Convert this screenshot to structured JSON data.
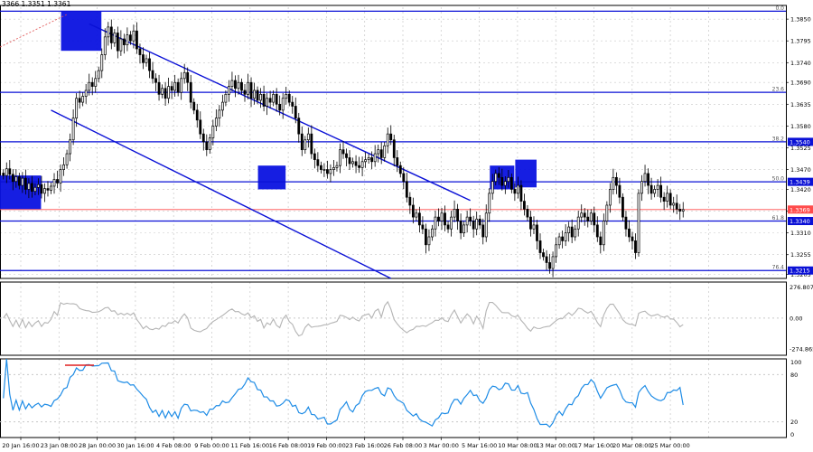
{
  "header": {
    "ohlc_text": "3366 1.3351 1.3361"
  },
  "colors": {
    "grid": "#c8c8c8",
    "candle": "#000000",
    "level_line": "#0a10d6",
    "box_fill": "#0a12e0",
    "price_line": "#ff4b4b",
    "cci_line": "#b4b4b4",
    "rsi_line": "#1e8ce6",
    "fib_diag": "#e05050"
  },
  "chart_data": [
    {
      "type": "candlestick",
      "title": "",
      "time_labels": [
        "20 Jan 16:00",
        "23 Jan 08:00",
        "28 Jan 00:00",
        "30 Jan 16:00",
        "4 Feb 08:00",
        "9 Feb 00:00",
        "11 Feb 16:00",
        "16 Feb 08:00",
        "19 Feb 00:00",
        "23 Feb 16:00",
        "26 Feb 08:00",
        "3 Mar 00:00",
        "5 Mar 16:00",
        "10 Mar 08:00",
        "13 Mar 00:00",
        "17 Mar 16:00",
        "20 Mar 08:00",
        "25 Mar 00:00"
      ],
      "price_ticks": [
        "1.3850",
        "1.3795",
        "1.3740",
        "1.3690",
        "1.3635",
        "1.3580",
        "1.3525",
        "1.3470",
        "1.3420",
        "1.3365",
        "1.3310",
        "1.3255",
        "1.3205"
      ],
      "ylim": [
        1.3195,
        1.388
      ],
      "fib_levels": [
        {
          "label": "0.0",
          "price": 1.387,
          "badge": ""
        },
        {
          "label": "23.6",
          "price": 1.3665,
          "badge": ""
        },
        {
          "label": "38.2",
          "price": 1.354,
          "badge": "1.3540"
        },
        {
          "label": "50.0",
          "price": 1.3439,
          "badge": "1.3439"
        },
        {
          "label": "61.8",
          "price": 1.334,
          "badge": "1.3340"
        },
        {
          "label": "76.4",
          "price": 1.3215,
          "badge": "1.3215"
        }
      ],
      "current_price": {
        "price": 1.3369,
        "badge": "1.3369"
      },
      "candles_close": [
        1.3455,
        1.3472,
        1.3458,
        1.344,
        1.3452,
        1.343,
        1.3448,
        1.342,
        1.3435,
        1.3415,
        1.3425,
        1.3432,
        1.341,
        1.3422,
        1.3418,
        1.3428,
        1.3445,
        1.3436,
        1.347,
        1.3482,
        1.351,
        1.3545,
        1.36,
        1.365,
        1.364,
        1.3655,
        1.367,
        1.369,
        1.368,
        1.37,
        1.372,
        1.376,
        1.3805,
        1.383,
        1.379,
        1.3815,
        1.377,
        1.38,
        1.3785,
        1.381,
        1.3795,
        1.382,
        1.3775,
        1.376,
        1.374,
        1.375,
        1.372,
        1.37,
        1.369,
        1.366,
        1.3675,
        1.365,
        1.368,
        1.367,
        1.369,
        1.3665,
        1.37,
        1.3715,
        1.369,
        1.364,
        1.362,
        1.3595,
        1.356,
        1.354,
        1.352,
        1.355,
        1.358,
        1.36,
        1.362,
        1.364,
        1.366,
        1.368,
        1.3695,
        1.3675,
        1.369,
        1.367,
        1.366,
        1.369,
        1.365,
        1.367,
        1.3645,
        1.366,
        1.363,
        1.365,
        1.364,
        1.366,
        1.3635,
        1.362,
        1.365,
        1.366,
        1.364,
        1.363,
        1.36,
        1.356,
        1.352,
        1.3545,
        1.356,
        1.351,
        1.3495,
        1.348,
        1.347,
        1.347,
        1.346,
        1.347,
        1.3475,
        1.348,
        1.352,
        1.351,
        1.35,
        1.3485,
        1.349,
        1.348,
        1.3475,
        1.349,
        1.3495,
        1.35,
        1.349,
        1.351,
        1.352,
        1.35,
        1.353,
        1.356,
        1.3545,
        1.35,
        1.348,
        1.346,
        1.344,
        1.34,
        1.338,
        1.335,
        1.336,
        1.333,
        1.332,
        1.328,
        1.33,
        1.332,
        1.335,
        1.334,
        1.336,
        1.333,
        1.332,
        1.335,
        1.337,
        1.334,
        1.331,
        1.333,
        1.335,
        1.334,
        1.332,
        1.3345,
        1.333,
        1.33,
        1.336,
        1.341,
        1.344,
        1.346,
        1.345,
        1.343,
        1.344,
        1.345,
        1.342,
        1.341,
        1.343,
        1.339,
        1.337,
        1.335,
        1.332,
        1.333,
        1.329,
        1.326,
        1.325,
        1.3235,
        1.322,
        1.325,
        1.328,
        1.33,
        1.329,
        1.331,
        1.3325,
        1.33,
        1.332,
        1.335,
        1.336,
        1.335,
        1.334,
        1.336,
        1.333,
        1.33,
        1.328,
        1.334,
        1.338,
        1.342,
        1.345,
        1.343,
        1.34,
        1.335,
        1.332,
        1.33,
        1.329,
        1.326,
        1.341,
        1.344,
        1.346,
        1.343,
        1.341,
        1.342,
        1.343,
        1.34,
        1.339,
        1.341,
        1.338,
        1.3385,
        1.337,
        1.3365,
        1.3369
      ],
      "indicators": {
        "cci": {
          "ticks": [
            "276.8074",
            "0.00",
            "-274.865"
          ],
          "ylim": [
            -330,
            320
          ]
        },
        "rsi": {
          "ticks": [
            "100",
            "80",
            "20",
            "0"
          ],
          "ylim": [
            0,
            100
          ]
        }
      }
    }
  ]
}
